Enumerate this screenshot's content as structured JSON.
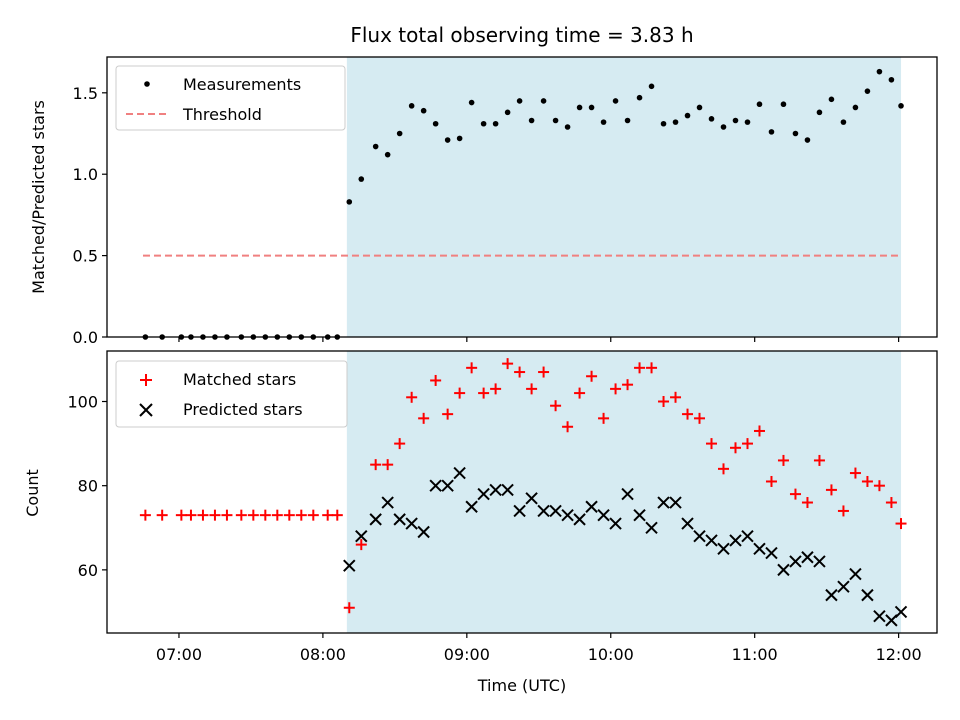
{
  "chart_data": [
    {
      "type": "scatter",
      "title": "Flux total observing time = 3.83 h",
      "ylabel": "Matched/Predicted stars",
      "xlabel": "",
      "ylim": [
        0,
        1.72
      ],
      "yticks": [
        "0.0",
        "0.5",
        "1.0",
        "1.5"
      ],
      "ytick_values": [
        0,
        0.5,
        1.0,
        1.5
      ],
      "legend": {
        "placement": "top-left",
        "entries": [
          "Measurements",
          "Threshold"
        ]
      },
      "colors": {
        "measurements": "#000000",
        "threshold": "#f08080",
        "observing_span": "#add8e6"
      },
      "observing_span": [
        "08:10",
        "12:01"
      ],
      "threshold": {
        "name": "Threshold",
        "x": [
          "06:45",
          "12:01"
        ],
        "y": 0.5
      },
      "series": [
        {
          "name": "Measurements",
          "x": [
            "06:46",
            "06:53",
            "07:01",
            "07:05",
            "07:10",
            "07:15",
            "07:20",
            "07:26",
            "07:31",
            "07:36",
            "07:41",
            "07:46",
            "07:51",
            "07:56",
            "08:02",
            "08:06",
            "08:11",
            "08:16",
            "08:22",
            "08:27",
            "08:32",
            "08:37",
            "08:42",
            "08:47",
            "08:52",
            "08:57",
            "09:02",
            "09:07",
            "09:12",
            "09:17",
            "09:22",
            "09:27",
            "09:32",
            "09:37",
            "09:42",
            "09:47",
            "09:52",
            "09:57",
            "10:02",
            "10:07",
            "10:12",
            "10:17",
            "10:22",
            "10:27",
            "10:32",
            "10:37",
            "10:42",
            "10:47",
            "10:52",
            "10:57",
            "11:02",
            "11:07",
            "11:12",
            "11:17",
            "11:22",
            "11:27",
            "11:32",
            "11:37",
            "11:42",
            "11:47",
            "11:52",
            "11:57",
            "12:01"
          ],
          "y": [
            0,
            0,
            0,
            0,
            0,
            0,
            0,
            0,
            0,
            0,
            0,
            0,
            0,
            0,
            0,
            0,
            0.83,
            0.97,
            1.17,
            1.12,
            1.25,
            1.42,
            1.39,
            1.31,
            1.21,
            1.22,
            1.44,
            1.31,
            1.31,
            1.38,
            1.45,
            1.33,
            1.45,
            1.33,
            1.29,
            1.41,
            1.41,
            1.32,
            1.45,
            1.33,
            1.47,
            1.54,
            1.31,
            1.32,
            1.36,
            1.41,
            1.34,
            1.29,
            1.33,
            1.32,
            1.43,
            1.26,
            1.43,
            1.25,
            1.21,
            1.38,
            1.46,
            1.32,
            1.41,
            1.51,
            1.63,
            1.58,
            1.42
          ]
        }
      ]
    },
    {
      "type": "scatter",
      "title": "",
      "xlabel": "Time (UTC)",
      "ylabel": "Count",
      "ylim": [
        45,
        112
      ],
      "yticks": [
        "60",
        "80",
        "100"
      ],
      "ytick_values": [
        60,
        80,
        100
      ],
      "xticks": [
        "07:00",
        "08:00",
        "09:00",
        "10:00",
        "11:00",
        "12:00"
      ],
      "xtick_values": [
        "07:00",
        "08:00",
        "09:00",
        "10:00",
        "11:00",
        "12:00"
      ],
      "xlim": [
        "06:30",
        "12:16"
      ],
      "legend": {
        "placement": "top-left",
        "entries": [
          "Matched stars",
          "Predicted stars"
        ]
      },
      "colors": {
        "matched": "#ff0000",
        "predicted": "#000000",
        "observing_span": "#add8e6"
      },
      "observing_span": [
        "08:10",
        "12:01"
      ],
      "series": [
        {
          "name": "Matched stars",
          "marker": "plus",
          "x": [
            "06:46",
            "06:53",
            "07:01",
            "07:05",
            "07:10",
            "07:15",
            "07:20",
            "07:26",
            "07:31",
            "07:36",
            "07:41",
            "07:46",
            "07:51",
            "07:56",
            "08:02",
            "08:06",
            "08:11",
            "08:16",
            "08:22",
            "08:27",
            "08:32",
            "08:37",
            "08:42",
            "08:47",
            "08:52",
            "08:57",
            "09:02",
            "09:07",
            "09:12",
            "09:17",
            "09:22",
            "09:27",
            "09:32",
            "09:37",
            "09:42",
            "09:47",
            "09:52",
            "09:57",
            "10:02",
            "10:07",
            "10:12",
            "10:17",
            "10:22",
            "10:27",
            "10:32",
            "10:37",
            "10:42",
            "10:47",
            "10:52",
            "10:57",
            "11:02",
            "11:07",
            "11:12",
            "11:17",
            "11:22",
            "11:27",
            "11:32",
            "11:37",
            "11:42",
            "11:47",
            "11:52",
            "11:57",
            "12:01"
          ],
          "y": [
            73,
            73,
            73,
            73,
            73,
            73,
            73,
            73,
            73,
            73,
            73,
            73,
            73,
            73,
            73,
            73,
            51,
            66,
            85,
            85,
            90,
            101,
            96,
            105,
            97,
            102,
            108,
            102,
            103,
            109,
            107,
            103,
            107,
            99,
            94,
            102,
            106,
            96,
            103,
            104,
            108,
            108,
            100,
            101,
            97,
            96,
            90,
            84,
            89,
            90,
            93,
            81,
            86,
            78,
            76,
            86,
            79,
            74,
            83,
            81,
            80,
            76,
            71
          ]
        },
        {
          "name": "Predicted stars",
          "marker": "x",
          "x": [
            "08:11",
            "08:16",
            "08:22",
            "08:27",
            "08:32",
            "08:37",
            "08:42",
            "08:47",
            "08:52",
            "08:57",
            "09:02",
            "09:07",
            "09:12",
            "09:17",
            "09:22",
            "09:27",
            "09:32",
            "09:37",
            "09:42",
            "09:47",
            "09:52",
            "09:57",
            "10:02",
            "10:07",
            "10:12",
            "10:17",
            "10:22",
            "10:27",
            "10:32",
            "10:37",
            "10:42",
            "10:47",
            "10:52",
            "10:57",
            "11:02",
            "11:07",
            "11:12",
            "11:17",
            "11:22",
            "11:27",
            "11:32",
            "11:37",
            "11:42",
            "11:47",
            "11:52",
            "11:57",
            "12:01"
          ],
          "y": [
            61,
            68,
            72,
            76,
            72,
            71,
            69,
            80,
            80,
            83,
            75,
            78,
            79,
            79,
            74,
            77,
            74,
            74,
            73,
            72,
            75,
            73,
            71,
            78,
            73,
            70,
            76,
            76,
            71,
            68,
            67,
            65,
            67,
            68,
            65,
            64,
            60,
            62,
            63,
            62,
            54,
            56,
            59,
            54,
            49,
            48,
            50
          ]
        }
      ]
    }
  ]
}
